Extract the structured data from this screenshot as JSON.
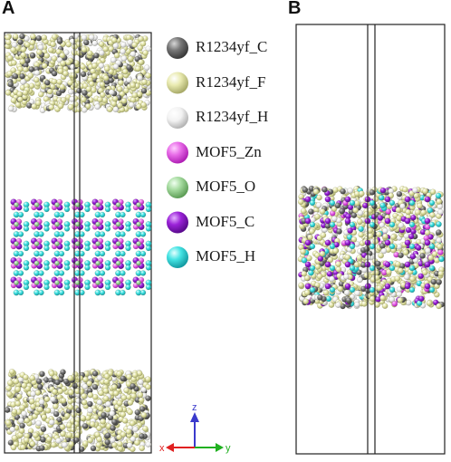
{
  "panels": {
    "a_label": "A",
    "b_label": "B"
  },
  "legend": [
    {
      "label": "R1234yf_C",
      "color": "#777777",
      "shade": "#3a3a3a"
    },
    {
      "label": "R1234yf_F",
      "color": "#e9eab0",
      "shade": "#a9ab6a"
    },
    {
      "label": "R1234yf_H",
      "color": "#f2f2f2",
      "shade": "#b5b5b5"
    },
    {
      "label": "MOF5_Zn",
      "color": "#e86be8",
      "shade": "#b020b5"
    },
    {
      "label": "MOF5_O",
      "color": "#a6dba0",
      "shade": "#5e9e57"
    },
    {
      "label": "MOF5_C",
      "color": "#9b22d8",
      "shade": "#5a0a8e"
    },
    {
      "label": "MOF5_H",
      "color": "#44e3e3",
      "shade": "#149ca3"
    }
  ],
  "axes": {
    "z": "z",
    "x": "x",
    "y": "y",
    "z_color": "#3a3acc",
    "x_color": "#e02020",
    "y_color": "#20b020"
  }
}
